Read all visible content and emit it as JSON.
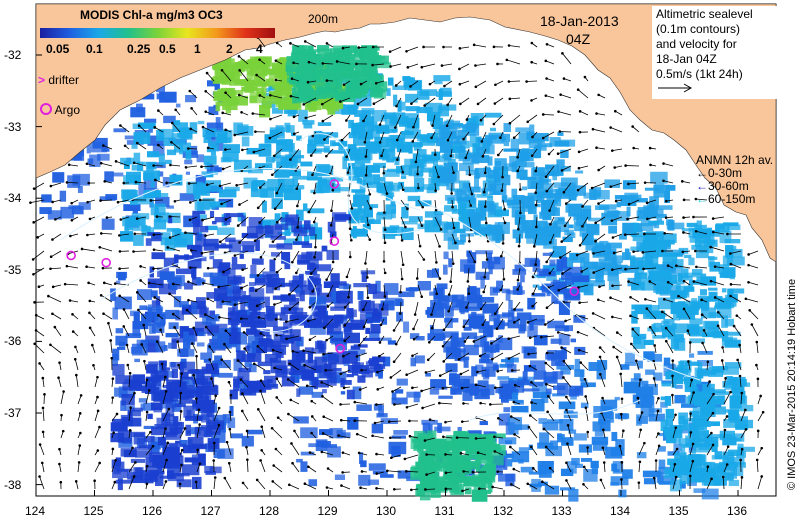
{
  "colorbar": {
    "title": "MODIS Chl-a mg/m3 OC3",
    "ticks": [
      "0.05",
      "0.1",
      "0.25",
      "0.5",
      "1",
      "2",
      "4"
    ],
    "colors": [
      "#1a1ea0",
      "#1f5fe0",
      "#19a8e8",
      "#21c08c",
      "#7ad23a",
      "#e8e61e",
      "#f39a1c",
      "#e0321a",
      "#a01010"
    ]
  },
  "header": {
    "date": "18-Jan-2013",
    "time": "04Z",
    "contour_label": "200m"
  },
  "altimetry_box": {
    "lines": [
      "Altimetric sealevel",
      "(0.1m contours)",
      "and velocity for",
      "18-Jan 04Z"
    ],
    "vector_scale": "0.5m/s (1kt 24h)"
  },
  "anmn_legend": {
    "title": "ANMN 12h av.",
    "items": [
      {
        "label": "0-30m",
        "color": "#000000"
      },
      {
        "label": "30-60m",
        "color": "#1818c8"
      },
      {
        "label": "60-150m",
        "color": "#20d0d8"
      }
    ]
  },
  "symbols": {
    "drifter": "drifter",
    "argo": "Argo"
  },
  "axes": {
    "y_ticks": [
      "-32",
      "-33",
      "-34",
      "-35",
      "-36",
      "-37",
      "-38"
    ],
    "x_ticks": [
      "124",
      "125",
      "126",
      "127",
      "128",
      "129",
      "130",
      "131",
      "132",
      "133",
      "134",
      "135",
      "136"
    ]
  },
  "argo_floats": [
    {
      "lon": 124.6,
      "lat": -34.8
    },
    {
      "lon": 125.2,
      "lat": -34.9
    },
    {
      "lon": 129.1,
      "lat": -33.8
    },
    {
      "lon": 129.1,
      "lat": -34.6
    },
    {
      "lon": 129.2,
      "lat": -36.1
    },
    {
      "lon": 133.2,
      "lat": -35.3
    }
  ],
  "credit": "© IMOS 23-Mar-2015 20:14:19 Hobart time",
  "colors": {
    "land": "#f9c59a",
    "argo": "#e020e0",
    "vectors": "#000000"
  }
}
